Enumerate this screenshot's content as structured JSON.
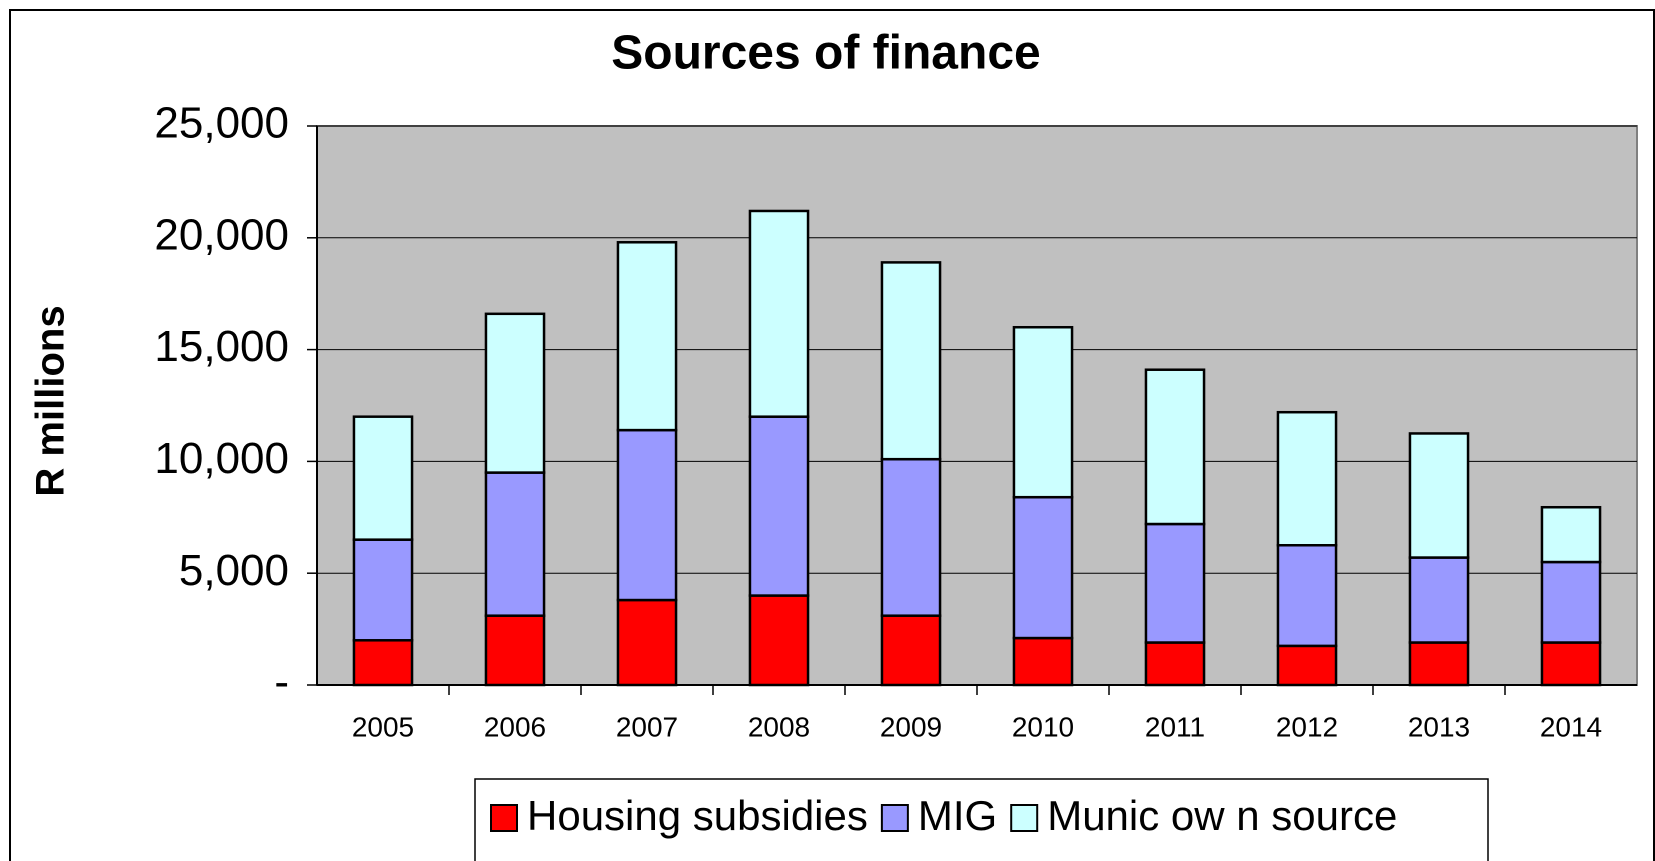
{
  "chart_data": {
    "type": "stacked_bar",
    "title": "Sources of finance",
    "y_label": "R millions",
    "categories": [
      "2005",
      "2006",
      "2007",
      "2008",
      "2009",
      "2010",
      "2011",
      "2012",
      "2013",
      "2014"
    ],
    "series": [
      {
        "name": "Housing subsidies",
        "color": "#ff0000",
        "values": [
          2000,
          3100,
          3800,
          4000,
          3100,
          2100,
          1900,
          1750,
          1900,
          1900
        ]
      },
      {
        "name": "MIG",
        "color": "#9999ff",
        "values": [
          4500,
          6400,
          7600,
          8000,
          7000,
          6300,
          5300,
          4500,
          3800,
          3600
        ]
      },
      {
        "name": "Munic ow n source",
        "color": "#ccffff",
        "values": [
          5500,
          7100,
          8400,
          9200,
          8800,
          7600,
          6900,
          5950,
          5550,
          2450
        ]
      }
    ],
    "ylim": [
      0,
      25000
    ],
    "yticks": [
      {
        "value": 0,
        "label": "-"
      },
      {
        "value": 5000,
        "label": "5,000"
      },
      {
        "value": 10000,
        "label": "10,000"
      },
      {
        "value": 15000,
        "label": "15,000"
      },
      {
        "value": 20000,
        "label": "20,000"
      },
      {
        "value": 25000,
        "label": "25,000"
      }
    ],
    "grid": true,
    "plot_background": "#c0c0c0",
    "legend": "bottom"
  }
}
